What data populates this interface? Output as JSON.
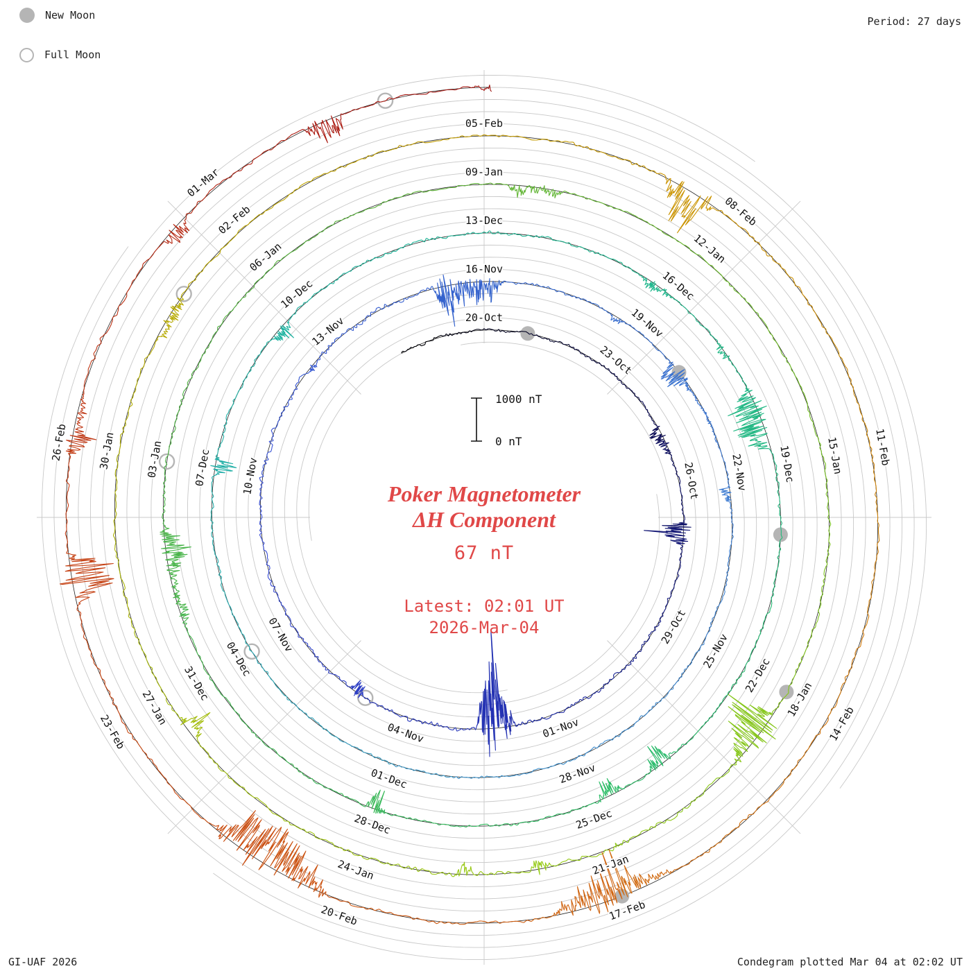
{
  "header": {
    "period_label": "Period: 27 days"
  },
  "legend": {
    "new_moon": "New Moon",
    "full_moon": "Full Moon"
  },
  "footer": {
    "left": "GI-UAF 2026",
    "right": "Condegram plotted Mar 04 at 02:02 UT"
  },
  "center": {
    "title_line1": "Poker Magnetometer",
    "title_line2": "ΔH Component",
    "value": "67 nT",
    "latest_line1": "Latest: 02:01 UT",
    "latest_line2": "2026-Mar-04"
  },
  "scale": {
    "top_label": "1000 nT",
    "bottom_label": "0 nT"
  },
  "chart_data": {
    "type": "line",
    "subtype": "condegram (spiral magnetogram, one revolution = 27 days)",
    "title": "Poker Magnetometer ΔH Component",
    "latest_reading": "67 nT",
    "latest_time": "Latest: 02:01 UT 2026-Mar-04",
    "period_days": 27,
    "label_step_days": 3,
    "day_zero_label": "20-Oct",
    "t_start": -2,
    "t_end": 135.08,
    "nT_per_scale_bar": 1000,
    "date_labels": [
      "20-Oct",
      "23-Oct",
      "26-Oct",
      "29-Oct",
      "01-Nov",
      "04-Nov",
      "07-Nov",
      "10-Nov",
      "13-Nov",
      "16-Nov",
      "19-Nov",
      "22-Nov",
      "25-Nov",
      "28-Nov",
      "01-Dec",
      "04-Dec",
      "07-Dec",
      "10-Dec",
      "13-Dec",
      "16-Dec",
      "19-Dec",
      "22-Dec",
      "25-Dec",
      "28-Dec",
      "31-Dec",
      "03-Jan",
      "06-Jan",
      "09-Jan",
      "12-Jan",
      "15-Jan",
      "18-Jan",
      "21-Jan",
      "24-Jan",
      "27-Jan",
      "30-Jan",
      "02-Feb",
      "05-Feb",
      "08-Feb",
      "11-Feb",
      "14-Feb",
      "17-Feb",
      "20-Feb",
      "23-Feb",
      "26-Feb",
      "01-Mar"
    ],
    "new_moon_days": [
      1,
      31,
      61,
      90,
      120
    ],
    "new_moon_dates": [
      "21-Oct",
      "20-Nov",
      "20-Dec",
      "18-Jan",
      "17-Feb"
    ],
    "full_moon_days": [
      16,
      45,
      75,
      104,
      134
    ],
    "full_moon_dates": [
      "05-Nov",
      "04-Dec",
      "03-Jan",
      "01-Feb",
      "03-Mar"
    ],
    "colors": {
      "grid": "#c8c8c8",
      "baseline": "#1a1a1a",
      "moon": "#b5b5b5",
      "label": "#111111",
      "accent_red": "#e04848"
    },
    "color_stops": [
      {
        "d": -2,
        "c": "#000000"
      },
      {
        "d": 5,
        "c": "#0c0c5a"
      },
      {
        "d": 13,
        "c": "#2230b0"
      },
      {
        "d": 20,
        "c": "#3a4ed8"
      },
      {
        "d": 27,
        "c": "#3463cc"
      },
      {
        "d": 34,
        "c": "#3f7ed2"
      },
      {
        "d": 41,
        "c": "#3f96cc"
      },
      {
        "d": 45,
        "c": "#2aacb4"
      },
      {
        "d": 52,
        "c": "#1cb49a"
      },
      {
        "d": 59,
        "c": "#22b886"
      },
      {
        "d": 66,
        "c": "#2cbc64"
      },
      {
        "d": 73,
        "c": "#46b44a"
      },
      {
        "d": 80,
        "c": "#5cb23a"
      },
      {
        "d": 87,
        "c": "#76c024"
      },
      {
        "d": 93,
        "c": "#92ca14"
      },
      {
        "d": 99,
        "c": "#a6bc0c"
      },
      {
        "d": 105,
        "c": "#bca400"
      },
      {
        "d": 111,
        "c": "#cc9404"
      },
      {
        "d": 117,
        "c": "#d2780e"
      },
      {
        "d": 123,
        "c": "#cc5410"
      },
      {
        "d": 129,
        "c": "#c23a14"
      },
      {
        "d": 134,
        "c": "#a81812"
      },
      {
        "d": 138,
        "c": "#8e0c0c"
      }
    ],
    "activity_start_day": -2,
    "activity_bin_days": 3,
    "activity": [
      0.5,
      0.45,
      0.4,
      0.55,
      0.75,
      0.8,
      0.65,
      0.85,
      1.0,
      0.7,
      0.35,
      0.3,
      0.5,
      0.6,
      0.5,
      0.45,
      0.6,
      0.45,
      0.7,
      0.35,
      0.5,
      0.6,
      0.55,
      0.45,
      0.4,
      0.55,
      0.5,
      0.4,
      0.3,
      0.45,
      0.55,
      1.0,
      0.8,
      0.45,
      0.65,
      0.5,
      0.5,
      0.75,
      0.45,
      0.6,
      0.55,
      0.65,
      0.6,
      0.85,
      0.65,
      0.5,
      0.4
    ]
  }
}
